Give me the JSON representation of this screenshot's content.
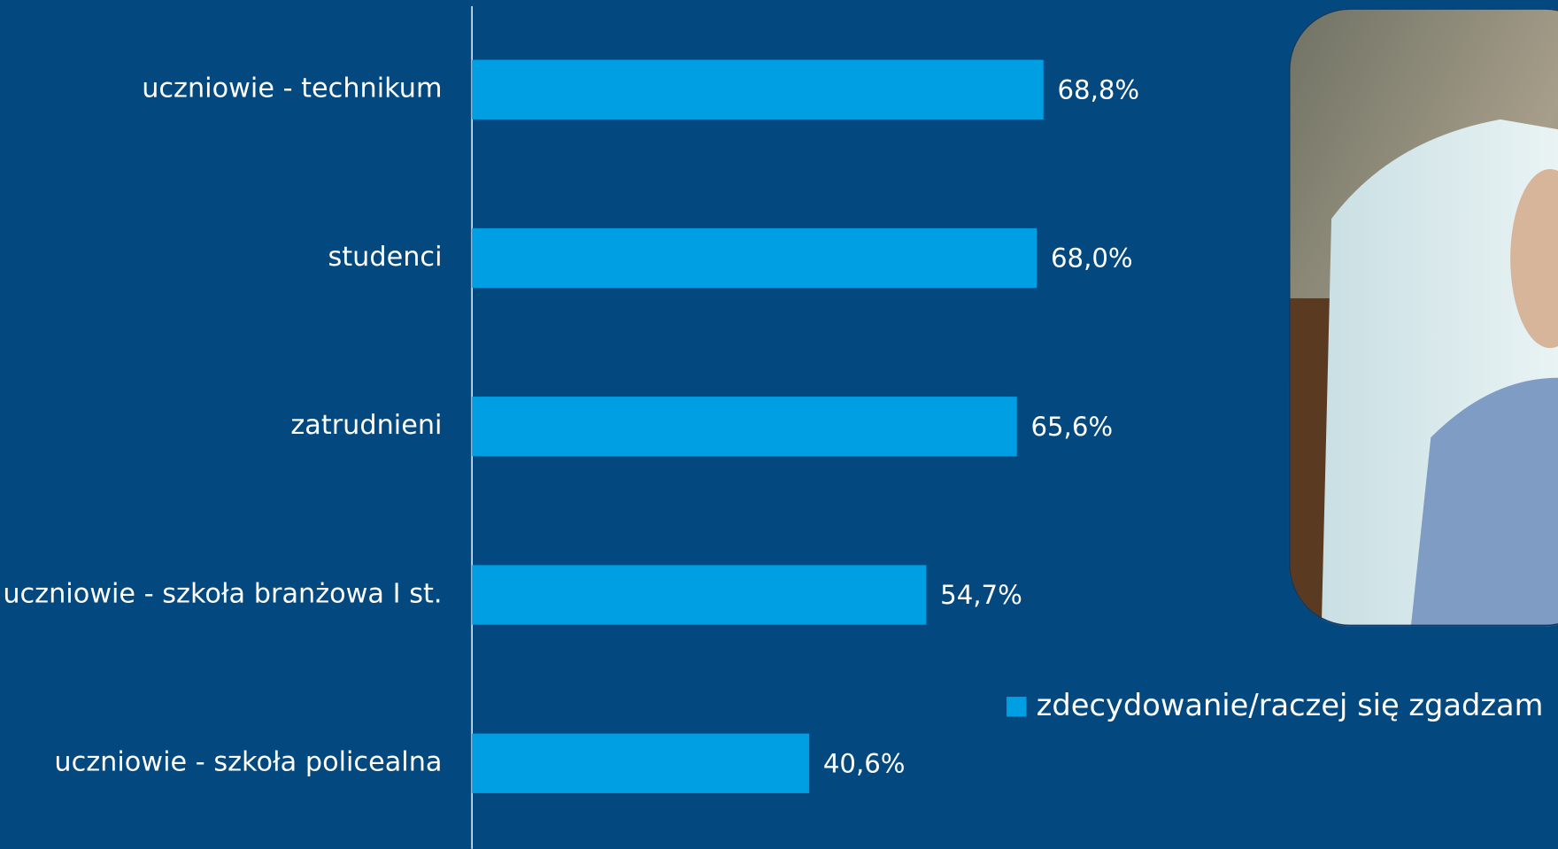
{
  "chart_data": {
    "type": "hbar",
    "categories": [
      "uczniowie - technikum",
      "studenci",
      "zatrudnieni",
      "uczniowie - szkoła branżowa I st.",
      "uczniowie - szkoła policealna"
    ],
    "series": [
      {
        "name": "zdecydowanie/raczej się zgadzam",
        "color": "#009fe3",
        "values": [
          68.8,
          68.0,
          65.6,
          54.7,
          40.6
        ],
        "value_labels": [
          "68,8%",
          "68,0%",
          "65,6%",
          "54,7%",
          "40,6%"
        ]
      }
    ],
    "xlim": [
      0,
      100
    ]
  }
}
